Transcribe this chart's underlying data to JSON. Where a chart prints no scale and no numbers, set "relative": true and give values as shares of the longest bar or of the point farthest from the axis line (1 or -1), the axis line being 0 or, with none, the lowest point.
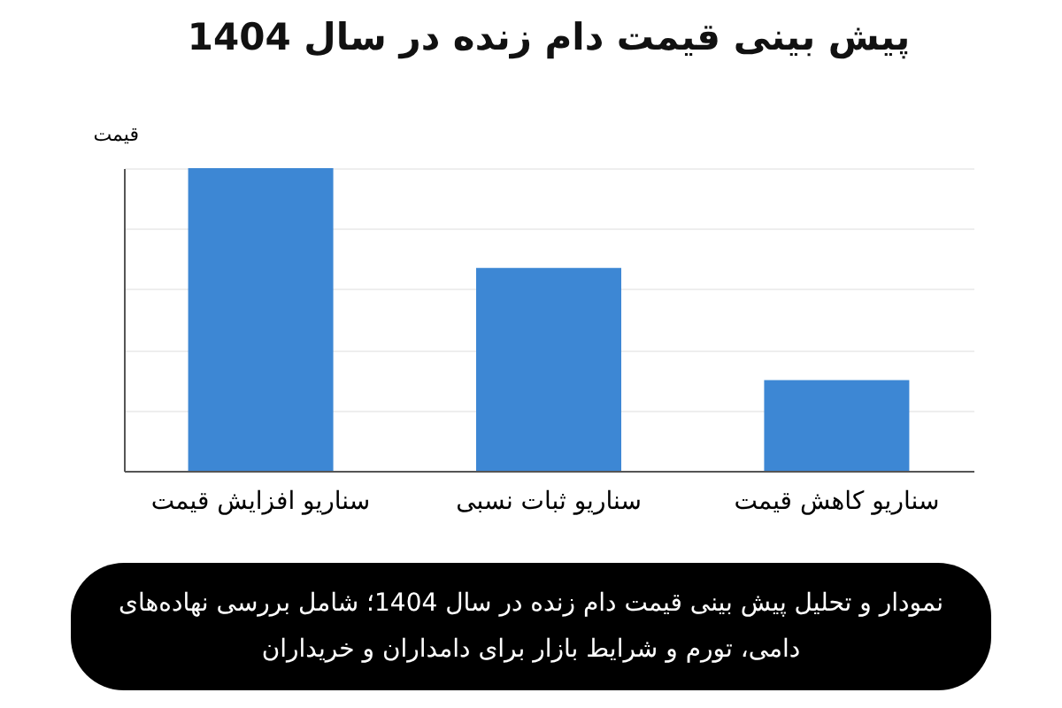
{
  "chart_data": {
    "type": "bar",
    "title": "پیش بینی قیمت دام زنده در سال 1404",
    "ylabel": "قیمت",
    "categories": [
      "سناریو افزایش قیمت",
      "سناریو ثبات نسبی",
      "سناریو کاهش قیمت"
    ],
    "values": [
      1,
      0.67,
      0.3
    ],
    "color": "#3d87d4",
    "relative": true,
    "grid": "y",
    "annotations": [
      "نمودار و تحلیل پیش بینی قیمت دام زنده در سال 1404؛ شامل بررسی نهاده‌های دامی، تورم و شرایط بازار برای دامداران و خریداران"
    ]
  }
}
